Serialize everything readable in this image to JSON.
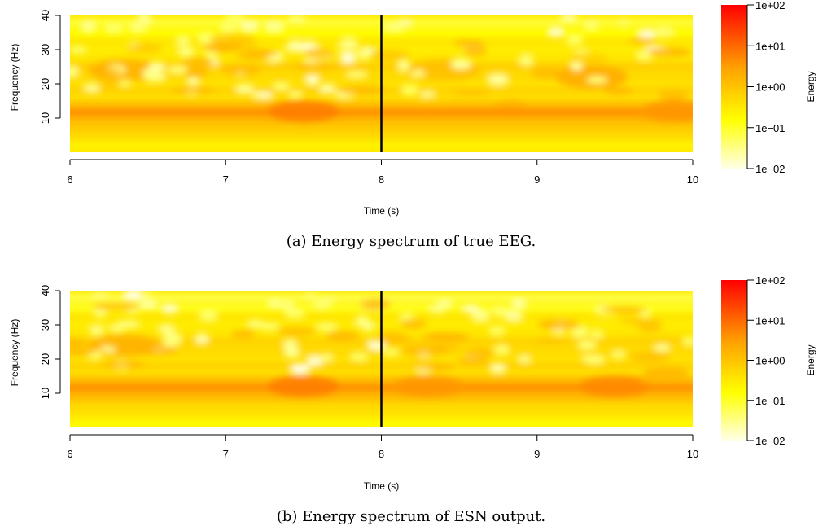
{
  "chart_data": [
    {
      "type": "heatmap",
      "title": "",
      "caption": "(a) Energy spectrum of true EEG.",
      "xlabel": "Time (s)",
      "ylabel": "Frequency (Hz)",
      "xlim": [
        6,
        10
      ],
      "ylim": [
        0,
        40
      ],
      "xticks": [
        6,
        7,
        8,
        9,
        10
      ],
      "yticks": [
        10,
        20,
        30,
        40
      ],
      "xtick_labels": [
        "6",
        "7",
        "8",
        "9",
        "10"
      ],
      "ytick_labels": [
        "10",
        "20",
        "30",
        "40"
      ],
      "vline_x": 8,
      "colorbar": {
        "label": "Energy",
        "scale": "log",
        "ticks": [
          0.01,
          0.1,
          1,
          10,
          100
        ],
        "tick_labels": [
          "1e−02",
          "1e−01",
          "1e+00",
          "1e+01",
          "1e+02"
        ],
        "colors": [
          "#ffffe0",
          "#ffff00",
          "#ffa500",
          "#ff0000"
        ]
      },
      "bands": [
        {
          "freq": 2,
          "energy": 0.3
        },
        {
          "freq": 4,
          "energy": 0.6
        },
        {
          "freq": 6,
          "energy": 1.0
        },
        {
          "freq": 8,
          "energy": 1.5
        },
        {
          "freq": 10,
          "energy": 3
        },
        {
          "freq": 12,
          "energy": 8
        },
        {
          "freq": 14,
          "energy": 2
        },
        {
          "freq": 18,
          "energy": 1.0
        },
        {
          "freq": 22,
          "energy": 0.8
        },
        {
          "freq": 25,
          "energy": 1.2
        },
        {
          "freq": 30,
          "energy": 0.4
        },
        {
          "freq": 35,
          "energy": 0.2
        },
        {
          "freq": 38,
          "energy": 0.1
        }
      ],
      "hotspots": [
        {
          "time": 6.35,
          "freq": 24,
          "energy": 3
        },
        {
          "time": 7.5,
          "freq": 12,
          "energy": 10
        },
        {
          "time": 8.4,
          "freq": 24,
          "energy": 2
        },
        {
          "time": 9.35,
          "freq": 22,
          "energy": 4
        },
        {
          "time": 9.9,
          "freq": 12,
          "energy": 6
        }
      ]
    },
    {
      "type": "heatmap",
      "title": "",
      "caption": "(b) Energy spectrum of ESN output.",
      "xlabel": "Time (s)",
      "ylabel": "Frequency (Hz)",
      "xlim": [
        6,
        10
      ],
      "ylim": [
        0,
        40
      ],
      "xticks": [
        6,
        7,
        8,
        9,
        10
      ],
      "yticks": [
        10,
        20,
        30,
        40
      ],
      "xtick_labels": [
        "6",
        "7",
        "8",
        "9",
        "10"
      ],
      "ytick_labels": [
        "10",
        "20",
        "30",
        "40"
      ],
      "vline_x": 8,
      "colorbar": {
        "label": "Energy",
        "scale": "log",
        "ticks": [
          0.01,
          0.1,
          1,
          10,
          100
        ],
        "tick_labels": [
          "1e−02",
          "1e−01",
          "1e+00",
          "1e+01",
          "1e+02"
        ],
        "colors": [
          "#ffffe0",
          "#ffff00",
          "#ffa500",
          "#ff0000"
        ]
      },
      "bands": [
        {
          "freq": 1,
          "energy": 0.2
        },
        {
          "freq": 3,
          "energy": 0.4
        },
        {
          "freq": 5,
          "energy": 0.7
        },
        {
          "freq": 8,
          "energy": 1.5
        },
        {
          "freq": 10,
          "energy": 3
        },
        {
          "freq": 12,
          "energy": 8
        },
        {
          "freq": 14,
          "energy": 2
        },
        {
          "freq": 18,
          "energy": 1.0
        },
        {
          "freq": 22,
          "energy": 0.8
        },
        {
          "freq": 25,
          "energy": 1.0
        },
        {
          "freq": 30,
          "energy": 0.4
        },
        {
          "freq": 35,
          "energy": 0.15
        },
        {
          "freq": 38,
          "energy": 0.08
        }
      ],
      "hotspots": [
        {
          "time": 6.35,
          "freq": 24,
          "energy": 3
        },
        {
          "time": 7.5,
          "freq": 12,
          "energy": 10
        },
        {
          "time": 8.3,
          "freq": 12,
          "energy": 6
        },
        {
          "time": 9.5,
          "freq": 12,
          "energy": 8
        }
      ]
    }
  ]
}
